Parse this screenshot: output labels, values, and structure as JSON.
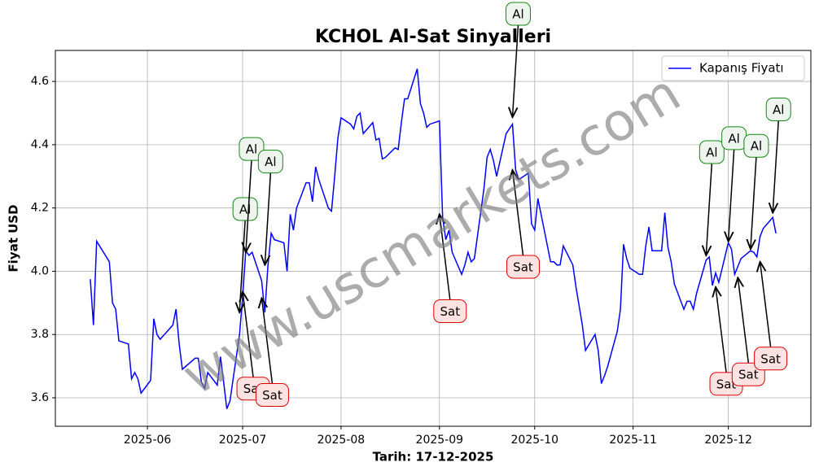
{
  "chart_data": {
    "type": "line",
    "title": "KCHOL Al-Sat Sinyalleri",
    "xlabel": "Tarih: 17-12-2025",
    "ylabel": "Fiyat USD",
    "watermark": "www.uscmarkets.com",
    "legend": "upper right",
    "grid": true,
    "xlim": [
      "2025-05-03",
      "2025-12-27"
    ],
    "ylim": [
      3.51,
      4.698
    ],
    "xticks": [
      {
        "value": "2025-06-01",
        "label": "2025-06"
      },
      {
        "value": "2025-07-01",
        "label": "2025-07"
      },
      {
        "value": "2025-08-01",
        "label": "2025-08"
      },
      {
        "value": "2025-09-01",
        "label": "2025-09"
      },
      {
        "value": "2025-10-01",
        "label": "2025-10"
      },
      {
        "value": "2025-11-01",
        "label": "2025-11"
      },
      {
        "value": "2025-12-01",
        "label": "2025-12"
      }
    ],
    "yticks": [
      3.6,
      3.8,
      {
        "value": 4,
        "label": "4.0"
      },
      4.2,
      4.4,
      4.6
    ],
    "x": [
      "2025-05-14",
      "2025-05-15",
      "2025-05-16",
      "2025-05-20",
      "2025-05-21",
      "2025-05-22",
      "2025-05-23",
      "2025-05-26",
      "2025-05-27",
      "2025-05-28",
      "2025-05-29",
      "2025-05-30",
      "2025-06-02",
      "2025-06-03",
      "2025-06-04",
      "2025-06-05",
      "2025-06-09",
      "2025-06-10",
      "2025-06-11",
      "2025-06-12",
      "2025-06-16",
      "2025-06-17",
      "2025-06-18",
      "2025-06-19",
      "2025-06-20",
      "2025-06-23",
      "2025-06-24",
      "2025-06-25",
      "2025-06-26",
      "2025-06-27",
      "2025-06-30",
      "2025-07-01",
      "2025-07-02",
      "2025-07-03",
      "2025-07-04",
      "2025-07-07",
      "2025-07-08",
      "2025-07-09",
      "2025-07-10",
      "2025-07-11",
      "2025-07-14",
      "2025-07-15",
      "2025-07-16",
      "2025-07-17",
      "2025-07-18",
      "2025-07-21",
      "2025-07-22",
      "2025-07-23",
      "2025-07-24",
      "2025-07-25",
      "2025-07-28",
      "2025-07-29",
      "2025-07-30",
      "2025-07-31",
      "2025-08-01",
      "2025-08-04",
      "2025-08-05",
      "2025-08-06",
      "2025-08-07",
      "2025-08-08",
      "2025-08-11",
      "2025-08-12",
      "2025-08-13",
      "2025-08-14",
      "2025-08-15",
      "2025-08-18",
      "2025-08-19",
      "2025-08-20",
      "2025-08-21",
      "2025-08-22",
      "2025-08-25",
      "2025-08-26",
      "2025-08-27",
      "2025-08-28",
      "2025-08-29",
      "2025-09-01",
      "2025-09-02",
      "2025-09-03",
      "2025-09-04",
      "2025-09-05",
      "2025-09-08",
      "2025-09-09",
      "2025-09-10",
      "2025-09-11",
      "2025-09-12",
      "2025-09-15",
      "2025-09-16",
      "2025-09-17",
      "2025-09-18",
      "2025-09-19",
      "2025-09-22",
      "2025-09-23",
      "2025-09-24",
      "2025-09-25",
      "2025-09-26",
      "2025-09-29",
      "2025-09-30",
      "2025-10-01",
      "2025-10-02",
      "2025-10-03",
      "2025-10-06",
      "2025-10-07",
      "2025-10-08",
      "2025-10-09",
      "2025-10-10",
      "2025-10-13",
      "2025-10-14",
      "2025-10-15",
      "2025-10-16",
      "2025-10-17",
      "2025-10-20",
      "2025-10-21",
      "2025-10-22",
      "2025-10-23",
      "2025-10-24",
      "2025-10-27",
      "2025-10-28",
      "2025-10-29",
      "2025-10-30",
      "2025-10-31",
      "2025-11-03",
      "2025-11-04",
      "2025-11-05",
      "2025-11-06",
      "2025-11-07",
      "2025-11-10",
      "2025-11-11",
      "2025-11-12",
      "2025-11-13",
      "2025-11-14",
      "2025-11-17",
      "2025-11-18",
      "2025-11-19",
      "2025-11-20",
      "2025-11-21",
      "2025-11-24",
      "2025-11-25",
      "2025-11-26",
      "2025-11-27",
      "2025-11-28",
      "2025-12-01",
      "2025-12-02",
      "2025-12-03",
      "2025-12-04",
      "2025-12-05",
      "2025-12-08",
      "2025-12-09",
      "2025-12-10",
      "2025-12-11",
      "2025-12-12",
      "2025-12-15",
      "2025-12-16"
    ],
    "series": [
      {
        "name": "Kapanış Fiyatı",
        "color": "#0000ff",
        "values": [
          3.975,
          3.83,
          4.095,
          4.03,
          3.9,
          3.88,
          3.78,
          3.77,
          3.66,
          3.68,
          3.66,
          3.615,
          3.655,
          3.85,
          3.8,
          3.785,
          3.83,
          3.88,
          3.77,
          3.69,
          3.725,
          3.725,
          3.65,
          3.63,
          3.68,
          3.64,
          3.73,
          3.65,
          3.565,
          3.59,
          3.8,
          3.92,
          4.065,
          4.05,
          4.06,
          3.97,
          3.87,
          4.02,
          4.12,
          4.1,
          4.09,
          4.0,
          4.18,
          4.13,
          4.2,
          4.28,
          4.28,
          4.22,
          4.33,
          4.29,
          4.2,
          4.19,
          4.3,
          4.42,
          4.485,
          4.465,
          4.45,
          4.49,
          4.5,
          4.435,
          4.47,
          4.415,
          4.42,
          4.355,
          4.36,
          4.39,
          4.385,
          4.47,
          4.545,
          4.545,
          4.64,
          4.53,
          4.5,
          4.455,
          4.465,
          4.475,
          4.17,
          4.1,
          4.13,
          4.06,
          3.99,
          4.02,
          4.06,
          4.03,
          4.04,
          4.26,
          4.36,
          4.385,
          4.35,
          4.3,
          4.435,
          4.45,
          4.465,
          4.32,
          4.29,
          4.31,
          4.15,
          4.13,
          4.23,
          4.18,
          4.03,
          4.03,
          4.02,
          4.02,
          4.08,
          4.02,
          3.95,
          3.89,
          3.83,
          3.75,
          3.8,
          3.75,
          3.645,
          3.67,
          3.7,
          3.81,
          3.88,
          4.085,
          4.04,
          4.01,
          3.99,
          3.99,
          4.08,
          4.14,
          4.065,
          4.065,
          4.185,
          4.075,
          4.03,
          3.96,
          3.88,
          3.905,
          3.905,
          3.88,
          3.93,
          4.035,
          4.045,
          3.955,
          3.995,
          3.965,
          4.09,
          4.07,
          3.99,
          4.015,
          4.04,
          4.065,
          4.06,
          4.045,
          4.11,
          4.135,
          4.17,
          4.12
        ]
      }
    ],
    "annotations": [
      {
        "text": "Al",
        "x": "2025-06-30",
        "y": 3.87
      },
      {
        "text": "Al",
        "x": "2025-07-02",
        "y": 4.06
      },
      {
        "text": "Al",
        "x": "2025-07-08",
        "y": 4.02
      },
      {
        "text": "Sat",
        "x": "2025-07-01",
        "y": 3.935
      },
      {
        "text": "Sat",
        "x": "2025-07-07",
        "y": 3.915
      },
      {
        "text": "Sat",
        "x": "2025-09-01",
        "y": 4.18
      },
      {
        "text": "Al",
        "x": "2025-09-24",
        "y": 4.487
      },
      {
        "text": "Sat",
        "x": "2025-09-24",
        "y": 4.32
      },
      {
        "text": "Al",
        "x": "2025-11-24",
        "y": 4.05
      },
      {
        "text": "Sat",
        "x": "2025-11-27",
        "y": 3.95
      },
      {
        "text": "Al",
        "x": "2025-12-01",
        "y": 4.094
      },
      {
        "text": "Sat",
        "x": "2025-12-04",
        "y": 3.98
      },
      {
        "text": "Al",
        "x": "2025-12-08",
        "y": 4.07
      },
      {
        "text": "Sat",
        "x": "2025-12-11",
        "y": 4.03
      },
      {
        "text": "Al",
        "x": "2025-12-15",
        "y": 4.185
      }
    ]
  }
}
